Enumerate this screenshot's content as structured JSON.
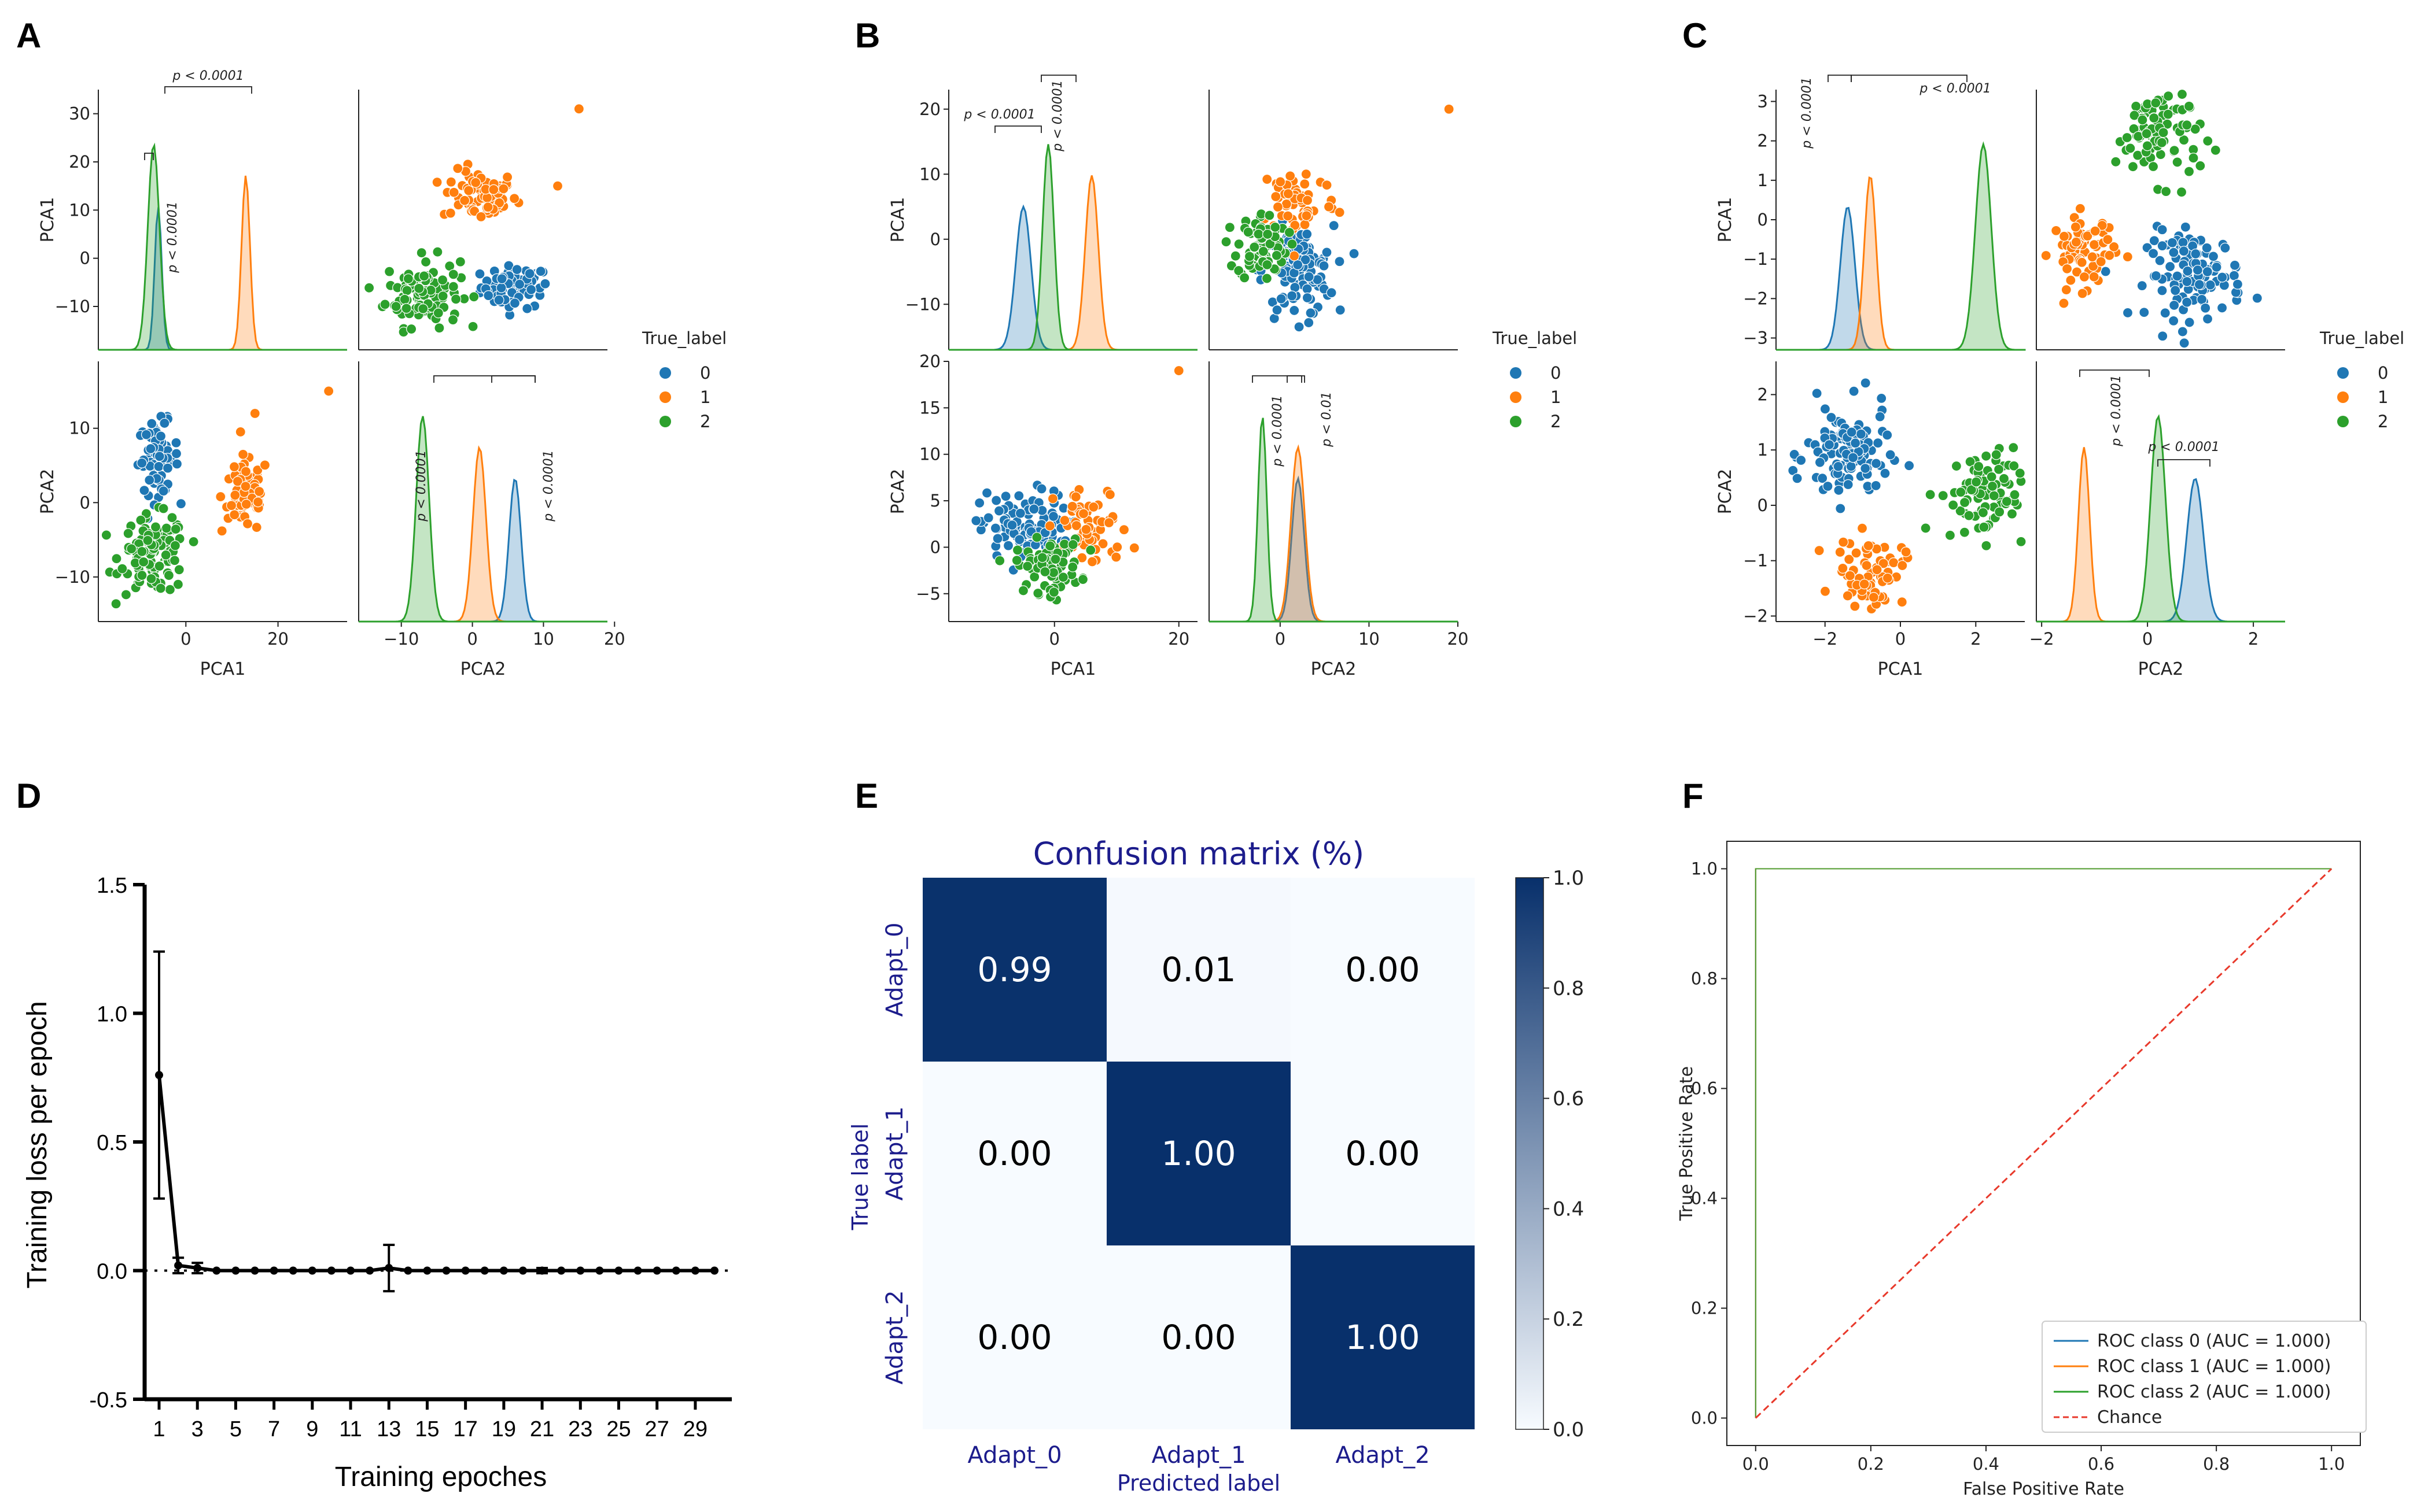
{
  "panel_labels": [
    "A",
    "B",
    "C",
    "D",
    "E",
    "F"
  ],
  "colors": {
    "class0": "#1f77b4",
    "class1": "#ff7f0e",
    "class2": "#2ca02c",
    "chance": "#e8392b",
    "cm_dark": "#08306b",
    "cm_light": "#f7fbff",
    "cm_text_dark": "#000000",
    "cm_text_light": "#ffffff"
  },
  "chart_data": [
    {
      "id": "A",
      "type": "scatter",
      "title": "",
      "legend_title": "True_label",
      "legend_labels": [
        "0",
        "1",
        "2"
      ],
      "variables": [
        "PCA1",
        "PCA2"
      ],
      "ylabels": [
        "PCA1",
        "PCA2"
      ],
      "xlabels": [
        "PCA1",
        "PCA2"
      ],
      "ranges": {
        "PCA1": [
          -19,
          35
        ],
        "PCA2": [
          -16,
          19
        ]
      },
      "ticks": {
        "PCA1": [
          -10,
          0,
          10,
          20,
          30
        ],
        "PCA1_x": [
          0,
          20
        ],
        "PCA2": [
          -10,
          0,
          10
        ],
        "PCA2_x": [
          -10,
          0,
          10,
          20
        ]
      },
      "tick_labels": {
        "diag1_y": [
          "−10",
          "0",
          "10",
          "20",
          "30"
        ],
        "scatter1_x": [
          "0",
          "20"
        ],
        "scatter2_y": [
          "−10",
          "0",
          "10"
        ],
        "diag2_x": [
          "−10",
          "0",
          "10",
          "20"
        ]
      },
      "clusters": [
        {
          "label": "0",
          "pca1": -6,
          "pca2": 6,
          "sd1": 2.2,
          "sd2": 2.4,
          "n": 70
        },
        {
          "label": "1",
          "pca1": 13,
          "pca2": 1,
          "sd1": 2.6,
          "sd2": 2.6,
          "n": 70
        },
        {
          "label": "2",
          "pca1": -7,
          "pca2": -7,
          "sd1": 3.6,
          "sd2": 2.6,
          "n": 110
        }
      ],
      "outliers": [
        {
          "label": "1",
          "pca1": 31,
          "pca2": 15
        },
        {
          "label": "1",
          "pca1": 15,
          "pca2": 12
        }
      ],
      "annotations": [
        "p < 0.0001",
        "p < 0.0001",
        "p < 0.0001",
        "p < 0.0001"
      ]
    },
    {
      "id": "B",
      "type": "scatter",
      "legend_title": "True_label",
      "legend_labels": [
        "0",
        "1",
        "2"
      ],
      "ylabels": [
        "PCA1",
        "PCA2"
      ],
      "xlabels": [
        "PCA1",
        "PCA2"
      ],
      "ranges": {
        "PCA1": [
          -17,
          23
        ],
        "PCA2": [
          -8,
          20
        ]
      },
      "tick_labels": {
        "diag1_y": [
          "−10",
          "0",
          "10",
          "20"
        ],
        "scatter1_x": [
          "0",
          "20"
        ],
        "scatter2_y": [
          "−5",
          "0",
          "5",
          "10",
          "15",
          "20"
        ],
        "diag2_x": [
          "0",
          "10",
          "20"
        ]
      },
      "ticks": {
        "PCA1": [
          -10,
          0,
          10,
          20
        ],
        "PCA1_x": [
          0,
          20
        ],
        "PCA2": [
          -5,
          0,
          5,
          10,
          15,
          20
        ],
        "PCA2_x": [
          0,
          10,
          20
        ]
      },
      "clusters": [
        {
          "label": "0",
          "pca1": -5,
          "pca2": 2,
          "sd1": 3.5,
          "sd2": 2.0,
          "n": 110
        },
        {
          "label": "1",
          "pca1": 6,
          "pca2": 2,
          "sd1": 3.0,
          "sd2": 2.2,
          "n": 60
        },
        {
          "label": "2",
          "pca1": -1,
          "pca2": -2,
          "sd1": 2.6,
          "sd2": 1.4,
          "n": 80
        }
      ],
      "outliers": [
        {
          "label": "1",
          "pca1": 20,
          "pca2": 19
        }
      ],
      "annotations": [
        "p < 0.0001",
        "p < 0.0001",
        "p < 0.0001",
        "p < 0.01"
      ]
    },
    {
      "id": "C",
      "type": "scatter",
      "legend_title": "True_label",
      "legend_labels": [
        "0",
        "1",
        "2"
      ],
      "ylabels": [
        "PCA1",
        "PCA2"
      ],
      "xlabels": [
        "PCA1",
        "PCA2"
      ],
      "ranges": {
        "PCA1": [
          -3.3,
          3.3
        ],
        "PCA2": [
          -2.1,
          2.6
        ]
      },
      "tick_labels": {
        "diag1_y": [
          "−3",
          "−2",
          "−1",
          "0",
          "1",
          "2",
          "3"
        ],
        "scatter1_x": [
          "−2",
          "0",
          "2"
        ],
        "scatter2_y": [
          "−2",
          "−1",
          "0",
          "1",
          "2"
        ],
        "diag2_x": [
          "−2",
          "0",
          "2"
        ]
      },
      "ticks": {
        "PCA1": [
          -3,
          -2,
          -1,
          0,
          1,
          2,
          3
        ],
        "PCA1_x": [
          -2,
          0,
          2
        ],
        "PCA2": [
          -2,
          -1,
          0,
          1,
          2
        ],
        "PCA2_x": [
          -2,
          0,
          2
        ]
      },
      "clusters": [
        {
          "label": "0",
          "pca1": -1.4,
          "pca2": 0.9,
          "sd1": 0.55,
          "sd2": 0.45,
          "n": 110
        },
        {
          "label": "1",
          "pca1": -0.8,
          "pca2": -1.2,
          "sd1": 0.45,
          "sd2": 0.3,
          "n": 70
        },
        {
          "label": "2",
          "pca1": 2.2,
          "pca2": 0.2,
          "sd1": 0.6,
          "sd2": 0.4,
          "n": 90
        }
      ],
      "outliers": [],
      "annotations": [
        "p < 0.0001",
        "p < 0.0001",
        "p < 0.0001",
        "p < 0.0001"
      ]
    },
    {
      "id": "D",
      "type": "line",
      "xlabel": "Training epoches",
      "ylabel": "Training loss per epoch",
      "ylim": [
        -0.5,
        1.5
      ],
      "y_ticks": [
        "-0.5",
        "0.0",
        "0.5",
        "1.0",
        "1.5"
      ],
      "x_ticks": [
        "1",
        "3",
        "5",
        "7",
        "9",
        "11",
        "13",
        "15",
        "17",
        "19",
        "21",
        "23",
        "25",
        "27",
        "29"
      ],
      "epochs": [
        1,
        2,
        3,
        4,
        5,
        6,
        7,
        8,
        9,
        10,
        11,
        12,
        13,
        14,
        15,
        16,
        17,
        18,
        19,
        20,
        21,
        22,
        23,
        24,
        25,
        26,
        27,
        28,
        29,
        30
      ],
      "values": [
        0.76,
        0.02,
        0.01,
        0,
        0,
        0,
        0,
        0,
        0,
        0,
        0,
        0,
        0.01,
        0,
        0,
        0,
        0,
        0,
        0,
        0,
        0,
        0,
        0,
        0,
        0,
        0,
        0,
        0,
        0,
        0
      ],
      "errors": [
        0.48,
        0.03,
        0.02,
        0,
        0,
        0,
        0,
        0,
        0,
        0,
        0,
        0,
        0.09,
        0,
        0,
        0,
        0,
        0,
        0,
        0,
        0.01,
        0,
        0,
        0,
        0,
        0,
        0,
        0,
        0,
        0
      ]
    },
    {
      "id": "E",
      "type": "heatmap",
      "title": "Confusion matrix (%)",
      "xlabel": "Predicted label",
      "ylabel": "True label",
      "x_categories": [
        "Adapt_0",
        "Adapt_1",
        "Adapt_2"
      ],
      "y_categories": [
        "Adapt_0",
        "Adapt_1",
        "Adapt_2"
      ],
      "values": [
        [
          0.99,
          0.01,
          0.0
        ],
        [
          0.0,
          1.0,
          0.0
        ],
        [
          0.0,
          0.0,
          1.0
        ]
      ],
      "cell_labels": [
        [
          "0.99",
          "0.01",
          "0.00"
        ],
        [
          "0.00",
          "1.00",
          "0.00"
        ],
        [
          "0.00",
          "0.00",
          "1.00"
        ]
      ],
      "colorbar_ticks": [
        "0.0",
        "0.2",
        "0.4",
        "0.6",
        "0.8",
        "1.0"
      ],
      "colorbar_range": [
        0,
        1
      ]
    },
    {
      "id": "F",
      "type": "line",
      "xlabel": "False Positive Rate",
      "ylabel": "True Positive Rate",
      "xlim": [
        -0.05,
        1.05
      ],
      "ylim": [
        -0.05,
        1.05
      ],
      "x_ticks": [
        "0.0",
        "0.2",
        "0.4",
        "0.6",
        "0.8",
        "1.0"
      ],
      "y_ticks": [
        "0.0",
        "0.2",
        "0.4",
        "0.6",
        "0.8",
        "1.0"
      ],
      "series": [
        {
          "name": "ROC class 0 (AUC = 1.000)",
          "x": [
            0,
            0,
            1
          ],
          "y": [
            0,
            1,
            1
          ],
          "color": "#1f77b4"
        },
        {
          "name": "ROC class 1 (AUC = 1.000)",
          "x": [
            0,
            0,
            1
          ],
          "y": [
            0,
            1,
            1
          ],
          "color": "#ff7f0e"
        },
        {
          "name": "ROC class 2 (AUC = 1.000)",
          "x": [
            0,
            0,
            1
          ],
          "y": [
            0,
            1,
            1
          ],
          "color": "#2ca02c"
        },
        {
          "name": "Chance",
          "x": [
            0,
            1
          ],
          "y": [
            0,
            1
          ],
          "color": "#e8392b",
          "dashed": true
        }
      ],
      "legend": [
        "ROC class 0 (AUC = 1.000)",
        "ROC class 1 (AUC = 1.000)",
        "ROC class 2 (AUC = 1.000)",
        "Chance"
      ]
    }
  ]
}
